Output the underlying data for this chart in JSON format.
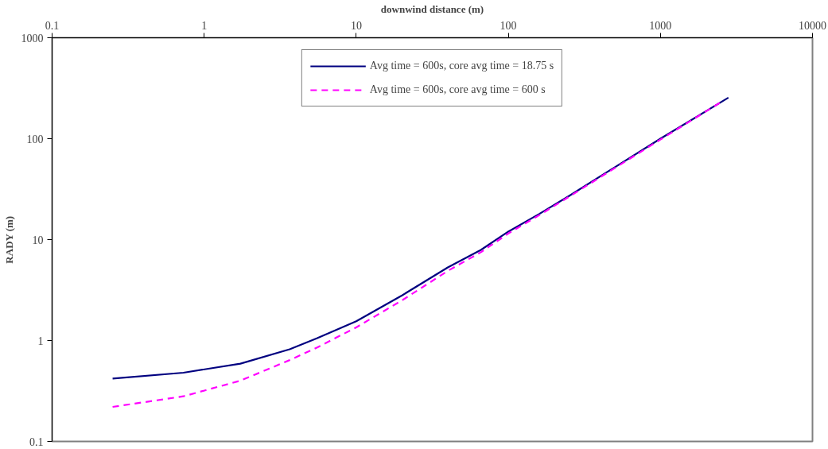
{
  "chart_data": {
    "type": "line",
    "xlabel": "downwind distance (m)",
    "ylabel": "RADY (m)",
    "log": "xy",
    "xlim": [
      0.1,
      10000
    ],
    "xticks": [
      0.1,
      1,
      10,
      100,
      1000,
      10000
    ],
    "ylim": [
      0.1,
      1000
    ],
    "yticks": [
      0.1,
      1,
      10,
      100,
      1000
    ],
    "grid": false,
    "legend": "top",
    "marker": "none",
    "series": [
      {
        "name": "Avg time = 600s, core avg time = 18.75 s",
        "color": "#000080",
        "line_style": "solid",
        "x": [
          0.25,
          0.73,
          1.73,
          3.65,
          5.5,
          10,
          20,
          40,
          66,
          100,
          160,
          250,
          500,
          1000,
          2800
        ],
        "values": [
          0.42,
          0.48,
          0.59,
          0.82,
          1.05,
          1.55,
          2.8,
          5.3,
          7.9,
          12,
          18,
          27,
          52,
          100,
          255
        ]
      },
      {
        "name": "Avg time = 600s, core avg time = 600 s",
        "color": "#ff00ff",
        "line_style": "dashed",
        "x": [
          0.25,
          0.73,
          1.73,
          3.65,
          5.5,
          10,
          20,
          40,
          66,
          100,
          160,
          250,
          500,
          1000,
          2500
        ],
        "values": [
          0.22,
          0.28,
          0.4,
          0.64,
          0.85,
          1.35,
          2.5,
          4.9,
          7.5,
          11.5,
          17.5,
          26.5,
          51,
          98,
          230
        ]
      }
    ]
  }
}
